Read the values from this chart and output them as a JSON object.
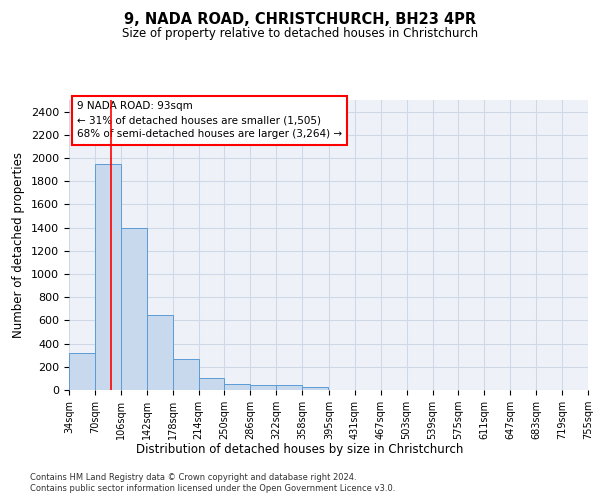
{
  "title": "9, NADA ROAD, CHRISTCHURCH, BH23 4PR",
  "subtitle": "Size of property relative to detached houses in Christchurch",
  "xlabel": "Distribution of detached houses by size in Christchurch",
  "ylabel": "Number of detached properties",
  "bar_values": [
    320,
    1950,
    1400,
    650,
    270,
    100,
    50,
    40,
    40,
    25,
    0,
    0,
    0,
    0,
    0,
    0,
    0,
    0,
    0,
    0
  ],
  "bin_edges": [
    34,
    70,
    106,
    142,
    178,
    214,
    250,
    286,
    322,
    358,
    395,
    431,
    467,
    503,
    539,
    575,
    611,
    647,
    683,
    719,
    755
  ],
  "bar_color": "#c8d9ed",
  "bar_edge_color": "#5b9bd5",
  "grid_color": "#d0d8e8",
  "bg_color": "#eef2f8",
  "red_line_x": 93,
  "ylim": [
    0,
    2500
  ],
  "yticks": [
    0,
    200,
    400,
    600,
    800,
    1000,
    1200,
    1400,
    1600,
    1800,
    2000,
    2200,
    2400
  ],
  "annotation_title": "9 NADA ROAD: 93sqm",
  "annotation_line1": "← 31% of detached houses are smaller (1,505)",
  "annotation_line2": "68% of semi-detached houses are larger (3,264) →",
  "footer_line1": "Contains HM Land Registry data © Crown copyright and database right 2024.",
  "footer_line2": "Contains public sector information licensed under the Open Government Licence v3.0."
}
